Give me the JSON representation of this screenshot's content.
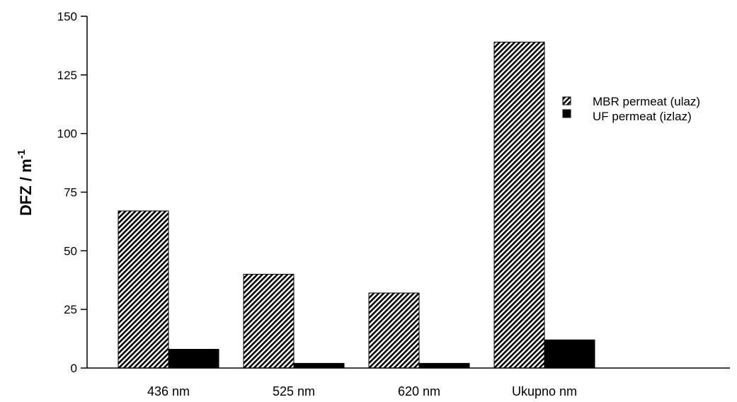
{
  "chart_data": {
    "type": "bar",
    "categories": [
      "436 nm",
      "525 nm",
      "620 nm",
      "Ukupno nm"
    ],
    "series": [
      {
        "name": "MBR permeat (ulaz)",
        "values": [
          67,
          40,
          32,
          139
        ],
        "fill": "hatch"
      },
      {
        "name": "UF permeat (izlaz)",
        "values": [
          8,
          2,
          2,
          12
        ],
        "fill": "solid"
      }
    ],
    "ylabel": {
      "main": "DFZ / m",
      "superscript": "-1"
    },
    "ylim": [
      0,
      150
    ],
    "yticks": [
      0,
      25,
      50,
      75,
      100,
      125,
      150
    ],
    "grid": false,
    "legend_position": "top-right",
    "colors": {
      "bar": "#000000",
      "background": "#ffffff"
    }
  }
}
